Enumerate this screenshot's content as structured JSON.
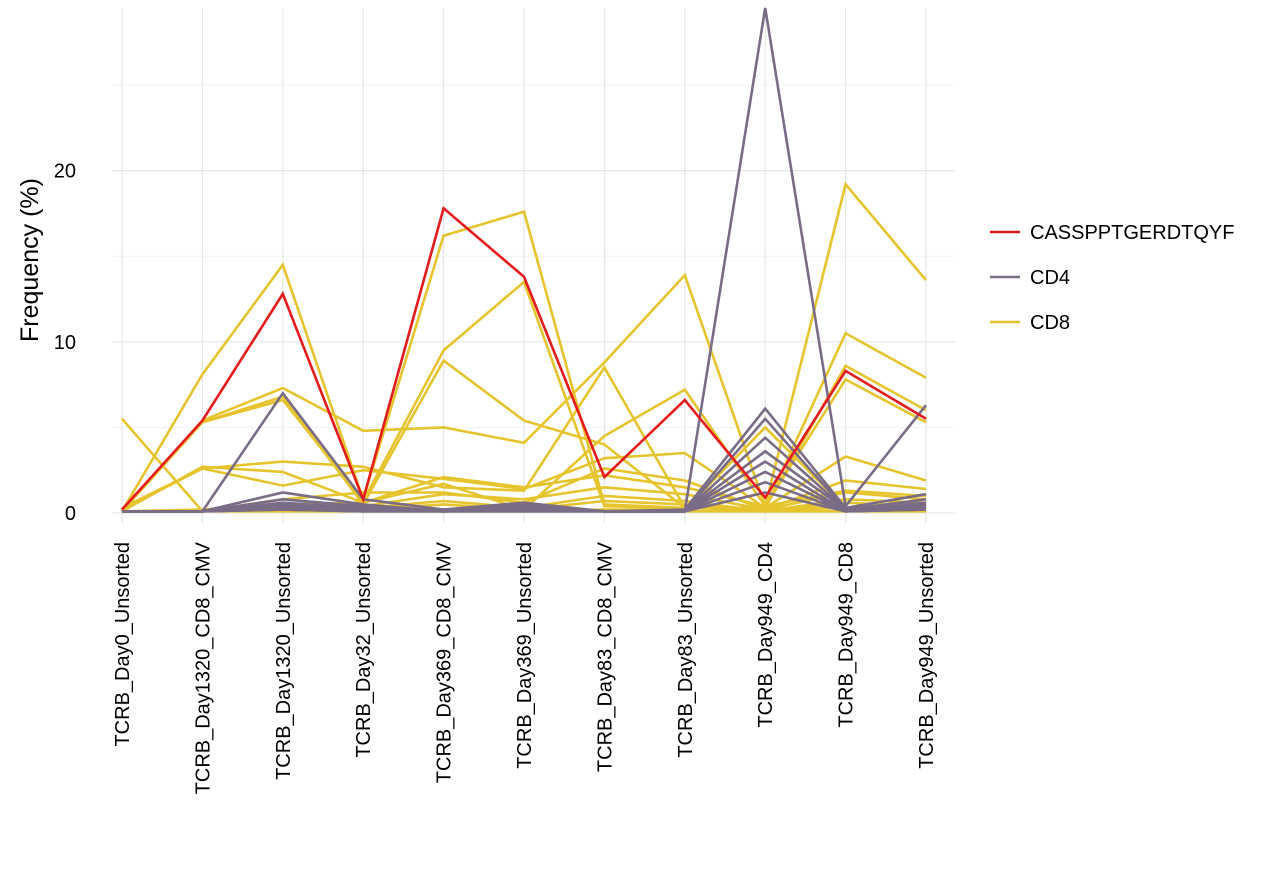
{
  "chart_data": {
    "type": "line",
    "title": "",
    "xlabel": "",
    "ylabel": "Frequency (%)",
    "ylim": [
      0,
      29.5
    ],
    "yticks": [
      "0",
      "10",
      "20"
    ],
    "categories": [
      "TCRB_Day0_Unsorted",
      "TCRB_Day1320_CD8_CMV",
      "TCRB_Day1320_Unsorted",
      "TCRB_Day32_Unsorted",
      "TCRB_Day369_CD8_CMV",
      "TCRB_Day369_Unsorted",
      "TCRB_Day83_CD8_CMV",
      "TCRB_Day83_Unsorted",
      "TCRB_Day949_CD4",
      "TCRB_Day949_CD8",
      "TCRB_Day949_Unsorted"
    ],
    "grid": true,
    "legend_position": "right",
    "groups": [
      {
        "name": "CASSPPTGERDTQYF",
        "color": "#e41a1c"
      },
      {
        "name": "CD4",
        "color": "#7a6c86"
      },
      {
        "name": "CD8",
        "color": "#e6c42e"
      }
    ],
    "series": [
      {
        "group": "CD8",
        "values": [
          5.5,
          0.1,
          0.2,
          0.3,
          0.2,
          0.2,
          0.1,
          0.1,
          0.1,
          0.1,
          0.1
        ]
      },
      {
        "group": "CD8",
        "values": [
          0.1,
          8.1,
          14.5,
          0.8,
          16.2,
          17.6,
          0.5,
          0.3,
          0.2,
          0.3,
          0.2
        ]
      },
      {
        "group": "CD8",
        "values": [
          0.1,
          5.4,
          7.3,
          4.8,
          5.0,
          4.1,
          8.8,
          13.9,
          0.4,
          19.2,
          13.6
        ]
      },
      {
        "group": "CD8",
        "values": [
          0.1,
          5.3,
          6.6,
          0.7,
          9.5,
          13.5,
          0.4,
          0.3,
          0.2,
          0.3,
          0.2
        ]
      },
      {
        "group": "CD8",
        "values": [
          0.2,
          5.3,
          6.8,
          0.5,
          8.9,
          5.4,
          4.0,
          0.3,
          0.3,
          10.5,
          7.9
        ]
      },
      {
        "group": "CD8",
        "values": [
          0.2,
          2.6,
          3.0,
          2.7,
          1.5,
          1.3,
          8.5,
          0.3,
          0.3,
          8.6,
          6.0
        ]
      },
      {
        "group": "CD8",
        "values": [
          0.1,
          2.7,
          2.4,
          0.6,
          1.7,
          0.2,
          4.5,
          7.2,
          0.4,
          7.8,
          5.3
        ]
      },
      {
        "group": "CD8",
        "values": [
          0.3,
          2.6,
          1.6,
          2.5,
          2.0,
          1.4,
          3.2,
          3.5,
          0.3,
          3.3,
          1.9
        ]
      },
      {
        "group": "CD8",
        "values": [
          0.1,
          0.1,
          0.8,
          1.2,
          1.2,
          0.6,
          2.6,
          1.9,
          0.2,
          1.9,
          1.4
        ]
      },
      {
        "group": "CD8",
        "values": [
          0.1,
          0.2,
          0.5,
          0.6,
          2.1,
          1.5,
          2.2,
          1.5,
          0.4,
          1.3,
          1.0
        ]
      },
      {
        "group": "CD8",
        "values": [
          0.1,
          0.1,
          0.4,
          0.4,
          1.1,
          0.8,
          1.5,
          1.1,
          0.2,
          1.2,
          0.8
        ]
      },
      {
        "group": "CD8",
        "values": [
          0.1,
          0.1,
          0.3,
          0.3,
          0.7,
          0.3,
          1.0,
          0.7,
          0.1,
          0.8,
          0.6
        ]
      },
      {
        "group": "CD8",
        "values": [
          0.1,
          0.1,
          0.2,
          0.2,
          0.5,
          0.2,
          0.7,
          0.5,
          0.1,
          0.6,
          0.4
        ]
      },
      {
        "group": "CD4",
        "values": [
          0.1,
          0.1,
          7.0,
          0.8,
          0.2,
          0.6,
          0.1,
          0.1,
          29.5,
          0.4,
          6.3
        ]
      },
      {
        "group": "CD4",
        "values": [
          0.1,
          0.1,
          1.2,
          0.5,
          0.1,
          0.5,
          0.1,
          0.2,
          6.1,
          0.3,
          1.1
        ]
      },
      {
        "group": "CD4",
        "values": [
          0.1,
          0.1,
          0.8,
          0.4,
          0.1,
          0.4,
          0.1,
          0.1,
          5.5,
          0.2,
          0.8
        ]
      },
      {
        "group": "CD4",
        "values": [
          0.1,
          0.1,
          0.6,
          0.3,
          0.1,
          0.3,
          0.1,
          0.1,
          4.4,
          0.2,
          0.6
        ]
      },
      {
        "group": "CD4",
        "values": [
          0.1,
          0.1,
          0.5,
          0.3,
          0.1,
          0.3,
          0.1,
          0.1,
          3.6,
          0.2,
          0.5
        ]
      },
      {
        "group": "CD4",
        "values": [
          0.1,
          0.1,
          0.4,
          0.2,
          0.1,
          0.2,
          0.1,
          0.1,
          3.0,
          0.1,
          0.4
        ]
      },
      {
        "group": "CD4",
        "values": [
          0.1,
          0.1,
          0.3,
          0.2,
          0.1,
          0.2,
          0.1,
          0.1,
          2.4,
          0.1,
          0.3
        ]
      },
      {
        "group": "CD4",
        "values": [
          0.1,
          0.1,
          0.2,
          0.1,
          0.1,
          0.1,
          0.1,
          0.1,
          1.8,
          0.1,
          0.2
        ]
      },
      {
        "group": "CD4",
        "values": [
          0.1,
          0.1,
          0.2,
          0.1,
          0.1,
          0.1,
          0.1,
          0.1,
          1.2,
          0.1,
          0.2
        ]
      },
      {
        "group": "CD8",
        "values": [
          0.1,
          0.1,
          0.1,
          0.1,
          0.1,
          0.1,
          0.2,
          0.2,
          5.0,
          0.3,
          0.2
        ]
      },
      {
        "group": "CASSPPTGERDTQYF",
        "values": [
          0.2,
          5.4,
          12.8,
          0.8,
          17.8,
          13.8,
          2.1,
          6.6,
          0.9,
          8.3,
          5.5
        ]
      }
    ]
  }
}
